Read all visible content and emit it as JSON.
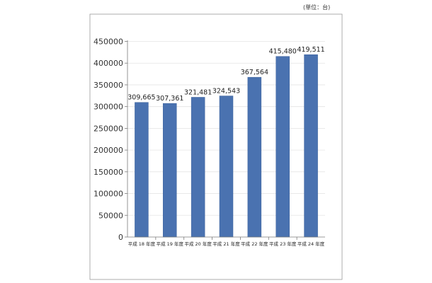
{
  "unit_note": "(単位：台)",
  "colors": {
    "bar": "#4a72b0",
    "bar_edge": "#3d629c",
    "grid": "#e4e4e4",
    "frame": "#9a9a9a",
    "axis": "#7a7a7a"
  },
  "chart_data": {
    "type": "bar",
    "title": "",
    "xlabel": "",
    "ylabel": "",
    "ylim": [
      0,
      450000
    ],
    "yticks": [
      0,
      50000,
      100000,
      150000,
      200000,
      250000,
      300000,
      350000,
      400000,
      450000
    ],
    "ytick_labels": [
      "0",
      "50000",
      "100000",
      "150000",
      "200000",
      "250000",
      "300000",
      "350000",
      "400000",
      "450000"
    ],
    "grid": true,
    "legend": "none",
    "categories": [
      "平成 18 年度",
      "平成 19 年度",
      "平成 20 年度",
      "平成 21 年度",
      "平成 22 年度",
      "平成 23 年度",
      "平成 24 年度"
    ],
    "values": [
      309665,
      307361,
      321481,
      324543,
      367564,
      415480,
      419511
    ],
    "data_labels": [
      "309,665",
      "307,361",
      "321,481",
      "324,543",
      "367,564",
      "415,480",
      "419,511"
    ]
  }
}
